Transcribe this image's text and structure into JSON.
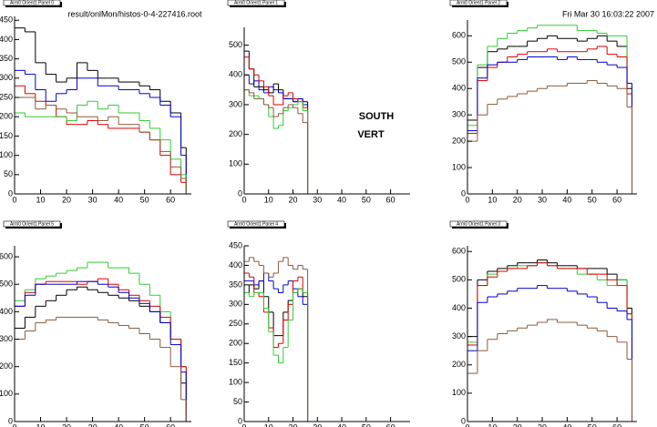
{
  "file_label": "result/onlMon/histos-0-4-227416.root",
  "date_label": "Fri Mar 30 16:03:22 2007",
  "chart_data": [
    {
      "type": "histogram",
      "title": "Arm0 Orient1 Panel 0",
      "bins": [
        0,
        4,
        8,
        12,
        16,
        20,
        24,
        28,
        32,
        36,
        40,
        44,
        48,
        52,
        56,
        60,
        64,
        66
      ],
      "xlim": [
        0,
        68
      ],
      "xticks": [
        0,
        10,
        20,
        30,
        40,
        50,
        60
      ],
      "ylim": [
        0,
        460
      ],
      "yticks": [
        0,
        50,
        100,
        150,
        200,
        250,
        300,
        350,
        400,
        450
      ],
      "series": [
        {
          "color": "#000000",
          "values": [
            430,
            420,
            340,
            310,
            290,
            300,
            340,
            320,
            300,
            300,
            290,
            290,
            280,
            270,
            240,
            210,
            120
          ]
        },
        {
          "color": "#0000cc",
          "values": [
            320,
            310,
            270,
            240,
            260,
            270,
            300,
            300,
            280,
            280,
            270,
            270,
            260,
            250,
            230,
            200,
            100
          ]
        },
        {
          "color": "#dd0000",
          "values": [
            280,
            260,
            240,
            230,
            200,
            180,
            180,
            190,
            180,
            170,
            170,
            170,
            160,
            140,
            100,
            50,
            30
          ]
        },
        {
          "color": "#33cc33",
          "values": [
            210,
            200,
            200,
            200,
            200,
            190,
            230,
            240,
            220,
            230,
            210,
            210,
            190,
            170,
            140,
            90,
            50
          ]
        },
        {
          "color": "#8b5a3c",
          "values": [
            250,
            250,
            220,
            230,
            220,
            210,
            200,
            200,
            190,
            200,
            180,
            180,
            160,
            140,
            110,
            70,
            40
          ]
        }
      ]
    },
    {
      "type": "histogram",
      "title": "Arm0 Orient1 Panel 1",
      "annotations": [
        "SOUTH",
        "VERT"
      ],
      "bins": [
        0,
        2,
        4,
        6,
        8,
        10,
        12,
        14,
        16,
        18,
        20,
        22,
        24,
        26
      ],
      "xlim": [
        0,
        68
      ],
      "xticks": [
        0,
        10,
        20,
        30,
        40,
        50,
        60
      ],
      "ylim": [
        0,
        560
      ],
      "yticks": [
        0,
        100,
        200,
        300,
        400,
        500
      ],
      "series": [
        {
          "color": "#000000",
          "values": [
            480,
            420,
            360,
            360,
            350,
            340,
            370,
            350,
            320,
            320,
            310,
            320,
            310
          ]
        },
        {
          "color": "#0000cc",
          "values": [
            400,
            370,
            380,
            350,
            340,
            360,
            350,
            340,
            320,
            320,
            310,
            320,
            300
          ]
        },
        {
          "color": "#dd0000",
          "values": [
            460,
            420,
            400,
            380,
            360,
            330,
            300,
            300,
            330,
            340,
            320,
            310,
            290
          ]
        },
        {
          "color": "#33cc33",
          "values": [
            350,
            330,
            330,
            320,
            300,
            260,
            220,
            230,
            280,
            290,
            300,
            310,
            280
          ]
        },
        {
          "color": "#8b5a3c",
          "values": [
            350,
            340,
            320,
            320,
            300,
            290,
            260,
            270,
            290,
            300,
            290,
            270,
            240
          ]
        }
      ]
    },
    {
      "type": "histogram",
      "title": "Arm0 Orient1 Panel 2",
      "bins": [
        0,
        4,
        8,
        12,
        16,
        20,
        24,
        28,
        32,
        36,
        40,
        44,
        48,
        52,
        56,
        60,
        64,
        66
      ],
      "xlim": [
        0,
        68
      ],
      "xticks": [
        0,
        10,
        20,
        30,
        40,
        50,
        60
      ],
      "ylim": [
        0,
        660
      ],
      "yticks": [
        0,
        100,
        200,
        300,
        400,
        500,
        600
      ],
      "series": [
        {
          "color": "#000000",
          "values": [
            280,
            480,
            540,
            550,
            560,
            560,
            580,
            590,
            600,
            590,
            590,
            580,
            590,
            600,
            580,
            560,
            400
          ]
        },
        {
          "color": "#33cc33",
          "values": [
            260,
            490,
            560,
            590,
            610,
            620,
            630,
            640,
            640,
            640,
            640,
            620,
            620,
            610,
            600,
            600,
            420
          ]
        },
        {
          "color": "#dd0000",
          "values": [
            230,
            430,
            480,
            500,
            520,
            530,
            540,
            540,
            550,
            540,
            540,
            540,
            550,
            560,
            530,
            520,
            380
          ]
        },
        {
          "color": "#0000cc",
          "values": [
            240,
            440,
            490,
            500,
            500,
            510,
            520,
            520,
            520,
            510,
            520,
            510,
            510,
            500,
            490,
            480,
            420
          ]
        },
        {
          "color": "#8b5a3c",
          "values": [
            200,
            300,
            340,
            360,
            370,
            380,
            390,
            400,
            410,
            410,
            420,
            420,
            430,
            420,
            410,
            400,
            330
          ]
        }
      ]
    },
    {
      "type": "histogram",
      "title": "Arm0 Orient1 Panel 5",
      "bins": [
        0,
        4,
        8,
        12,
        16,
        20,
        24,
        28,
        32,
        36,
        40,
        44,
        48,
        52,
        56,
        60,
        64,
        66
      ],
      "xlim": [
        0,
        68
      ],
      "xticks": [
        0,
        10,
        20,
        30,
        40,
        50,
        60
      ],
      "ylim": [
        0,
        640
      ],
      "yticks": [
        0,
        100,
        200,
        300,
        400,
        500,
        600
      ],
      "series": [
        {
          "color": "#000000",
          "values": [
            340,
            380,
            420,
            440,
            460,
            480,
            490,
            480,
            470,
            460,
            450,
            440,
            420,
            400,
            360,
            300,
            140
          ]
        },
        {
          "color": "#33cc33",
          "values": [
            440,
            480,
            520,
            530,
            540,
            550,
            560,
            580,
            580,
            560,
            560,
            540,
            500,
            460,
            400,
            300,
            200
          ]
        },
        {
          "color": "#dd0000",
          "values": [
            420,
            470,
            500,
            510,
            510,
            510,
            500,
            510,
            520,
            500,
            480,
            460,
            440,
            420,
            380,
            300,
            200
          ]
        },
        {
          "color": "#0000cc",
          "values": [
            420,
            460,
            500,
            500,
            500,
            500,
            510,
            510,
            500,
            490,
            470,
            450,
            430,
            400,
            360,
            280,
            180
          ]
        },
        {
          "color": "#8b5a3c",
          "values": [
            300,
            330,
            360,
            370,
            380,
            380,
            380,
            380,
            370,
            360,
            350,
            340,
            320,
            300,
            270,
            200,
            80
          ]
        }
      ]
    },
    {
      "type": "histogram",
      "title": "Arm0 Orient1 Panel 4",
      "bins": [
        0,
        2,
        4,
        6,
        8,
        10,
        12,
        14,
        16,
        18,
        20,
        22,
        24,
        26
      ],
      "xlim": [
        0,
        68
      ],
      "xticks": [
        0,
        10,
        20,
        30,
        40,
        50,
        60
      ],
      "ylim": [
        0,
        450
      ],
      "yticks": [
        0,
        50,
        100,
        150,
        200,
        250,
        300,
        350,
        400,
        450
      ],
      "series": [
        {
          "color": "#000000",
          "values": [
            330,
            350,
            340,
            360,
            320,
            280,
            220,
            220,
            280,
            310,
            330,
            340,
            320
          ]
        },
        {
          "color": "#0000cc",
          "values": [
            360,
            360,
            350,
            360,
            380,
            360,
            340,
            330,
            350,
            360,
            340,
            320,
            300
          ]
        },
        {
          "color": "#dd0000",
          "values": [
            380,
            370,
            330,
            320,
            280,
            240,
            190,
            200,
            260,
            300,
            360,
            370,
            330
          ]
        },
        {
          "color": "#33cc33",
          "values": [
            330,
            320,
            330,
            330,
            290,
            230,
            170,
            150,
            190,
            260,
            330,
            340,
            330
          ]
        },
        {
          "color": "#8b5a3c",
          "values": [
            410,
            420,
            410,
            400,
            380,
            370,
            380,
            410,
            420,
            400,
            390,
            400,
            390
          ]
        }
      ]
    },
    {
      "type": "histogram",
      "title": "Arm0 Orient1 Panel 3",
      "bins": [
        0,
        4,
        8,
        12,
        16,
        20,
        24,
        28,
        32,
        36,
        40,
        44,
        48,
        52,
        56,
        60,
        64,
        66
      ],
      "xlim": [
        0,
        68
      ],
      "xticks": [
        0,
        10,
        20,
        30,
        40,
        50,
        60
      ],
      "ylim": [
        0,
        620
      ],
      "yticks": [
        0,
        100,
        200,
        300,
        400,
        500,
        600
      ],
      "series": [
        {
          "color": "#000000",
          "values": [
            300,
            500,
            530,
            540,
            550,
            560,
            560,
            570,
            560,
            550,
            550,
            540,
            540,
            540,
            520,
            500,
            400
          ]
        },
        {
          "color": "#33cc33",
          "values": [
            280,
            480,
            520,
            530,
            540,
            550,
            550,
            560,
            550,
            540,
            540,
            520,
            520,
            500,
            480,
            500,
            380
          ]
        },
        {
          "color": "#dd0000",
          "values": [
            270,
            480,
            510,
            530,
            540,
            540,
            550,
            560,
            550,
            540,
            540,
            540,
            520,
            520,
            500,
            480,
            380
          ]
        },
        {
          "color": "#0000cc",
          "values": [
            250,
            420,
            440,
            450,
            460,
            470,
            470,
            480,
            470,
            470,
            460,
            450,
            440,
            420,
            400,
            390,
            360
          ]
        },
        {
          "color": "#8b5a3c",
          "values": [
            170,
            250,
            290,
            310,
            320,
            330,
            340,
            350,
            360,
            350,
            350,
            340,
            330,
            320,
            300,
            280,
            220
          ]
        }
      ]
    }
  ]
}
